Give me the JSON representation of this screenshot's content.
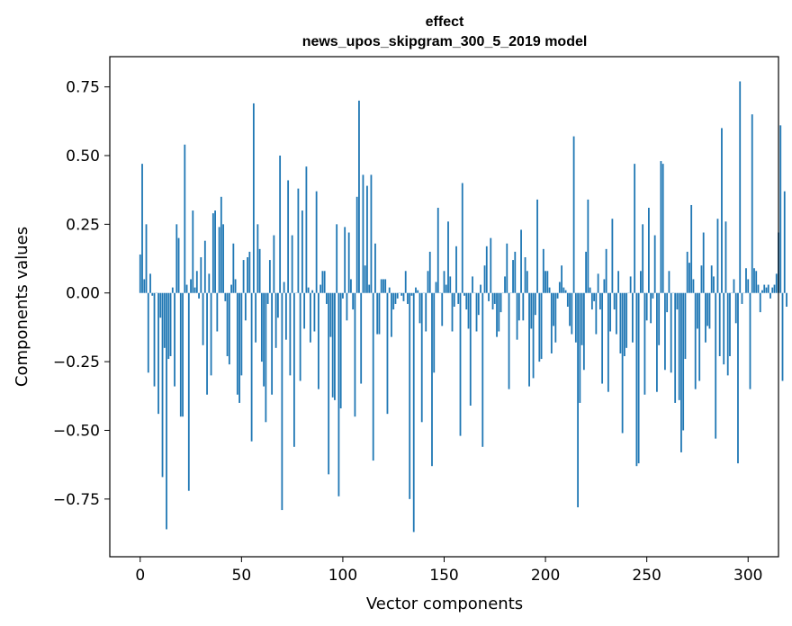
{
  "colors": {
    "bar": "#1f77b4",
    "axis": "#000000",
    "background": "#ffffff"
  },
  "chart_data": {
    "type": "bar",
    "title_line1": "effect",
    "title_line2": "news_upos_skipgram_300_5_2019 model",
    "xlabel": "Vector components",
    "ylabel": "Components values",
    "xlim": [
      -15,
      315
    ],
    "ylim": [
      -0.96,
      0.86
    ],
    "xticks": [
      0,
      50,
      100,
      150,
      200,
      250,
      300
    ],
    "yticks": [
      -0.75,
      -0.5,
      -0.25,
      0.0,
      0.25,
      0.5,
      0.75
    ],
    "ytick_labels": [
      "−0.75",
      "−0.50",
      "−0.25",
      "0.00",
      "0.25",
      "0.50",
      "0.75"
    ],
    "xtick_labels": [
      "0",
      "50",
      "100",
      "150",
      "200",
      "250",
      "300"
    ],
    "values": [
      0.14,
      0.47,
      0.05,
      0.25,
      -0.29,
      0.07,
      -0.01,
      -0.34,
      0.0,
      -0.44,
      -0.09,
      -0.67,
      -0.2,
      -0.86,
      -0.24,
      -0.23,
      0.02,
      -0.34,
      0.25,
      0.2,
      -0.45,
      -0.45,
      0.54,
      0.03,
      -0.72,
      0.05,
      0.3,
      0.02,
      0.08,
      -0.02,
      0.13,
      -0.19,
      0.19,
      -0.37,
      0.07,
      -0.3,
      0.29,
      0.3,
      -0.14,
      0.24,
      0.35,
      0.25,
      -0.03,
      -0.23,
      -0.26,
      0.03,
      0.18,
      0.05,
      -0.37,
      -0.4,
      -0.3,
      0.12,
      -0.1,
      0.13,
      0.15,
      -0.54,
      0.69,
      -0.18,
      0.25,
      0.16,
      -0.25,
      -0.34,
      -0.47,
      -0.04,
      0.12,
      -0.37,
      0.21,
      -0.2,
      -0.09,
      0.5,
      -0.79,
      0.04,
      -0.17,
      0.41,
      -0.3,
      0.21,
      -0.56,
      0.0,
      0.38,
      -0.32,
      0.3,
      -0.13,
      0.46,
      0.02,
      -0.18,
      0.01,
      -0.14,
      0.37,
      -0.35,
      0.03,
      0.08,
      0.08,
      -0.04,
      -0.66,
      -0.16,
      -0.38,
      -0.39,
      0.25,
      -0.74,
      -0.42,
      -0.02,
      0.24,
      -0.1,
      0.22,
      0.05,
      -0.06,
      -0.45,
      0.35,
      0.7,
      -0.33,
      0.43,
      0.1,
      0.39,
      0.03,
      0.43,
      -0.61,
      0.18,
      -0.15,
      -0.15,
      0.05,
      0.05,
      0.05,
      -0.44,
      0.02,
      -0.16,
      -0.06,
      -0.04,
      -0.02,
      0.0,
      -0.01,
      -0.03,
      0.08,
      -0.04,
      -0.75,
      -0.01,
      -0.87,
      0.02,
      0.01,
      -0.11,
      -0.47,
      0.0,
      -0.14,
      0.08,
      0.15,
      -0.63,
      -0.29,
      0.04,
      0.31,
      0.0,
      -0.12,
      0.08,
      0.03,
      0.26,
      0.06,
      -0.14,
      -0.05,
      0.17,
      -0.04,
      -0.52,
      0.4,
      -0.01,
      -0.06,
      -0.13,
      -0.41,
      0.06,
      0.0,
      -0.14,
      -0.08,
      0.03,
      -0.56,
      0.1,
      0.17,
      -0.03,
      0.2,
      -0.06,
      -0.04,
      -0.16,
      -0.14,
      -0.07,
      0.0,
      0.06,
      0.18,
      -0.35,
      0.0,
      0.12,
      0.15,
      -0.17,
      -0.1,
      0.23,
      -0.1,
      0.13,
      0.08,
      -0.34,
      -0.13,
      -0.31,
      -0.08,
      0.34,
      -0.25,
      -0.24,
      0.16,
      0.08,
      0.08,
      0.02,
      -0.22,
      -0.12,
      -0.18,
      -0.02,
      0.04,
      0.1,
      0.02,
      0.01,
      -0.05,
      -0.12,
      -0.15,
      0.57,
      -0.18,
      -0.78,
      -0.4,
      -0.19,
      -0.28,
      0.15,
      0.34,
      0.02,
      -0.06,
      -0.03,
      -0.15,
      0.07,
      -0.06,
      -0.33,
      0.05,
      0.16,
      -0.36,
      -0.14,
      0.27,
      -0.06,
      -0.15,
      0.08,
      -0.22,
      -0.51,
      -0.23,
      -0.2,
      0.0,
      0.06,
      -0.18,
      0.47,
      -0.63,
      -0.62,
      0.08,
      0.25,
      -0.37,
      -0.1,
      0.31,
      -0.11,
      -0.02,
      0.21,
      -0.36,
      -0.19,
      0.48,
      0.47,
      -0.28,
      -0.07,
      0.08,
      -0.29,
      0.0,
      -0.4,
      -0.06,
      -0.39,
      -0.58,
      -0.5,
      -0.24,
      0.15,
      0.11,
      0.32,
      0.05,
      -0.35,
      -0.13,
      -0.32,
      0.1,
      0.22,
      -0.18,
      -0.12,
      -0.13,
      0.1,
      0.06,
      -0.53,
      0.27,
      -0.23,
      0.6,
      -0.26,
      0.26,
      -0.3,
      -0.23,
      0.0,
      0.05,
      -0.11,
      -0.62,
      0.77,
      -0.04,
      0.0,
      0.09,
      0.05,
      -0.35,
      0.65,
      0.09,
      0.08,
      0.03,
      -0.07,
      0.01,
      0.03,
      0.02,
      0.03,
      -0.02,
      0.02,
      0.03,
      0.07,
      0.22,
      0.61,
      -0.32,
      0.37,
      -0.05
    ]
  }
}
